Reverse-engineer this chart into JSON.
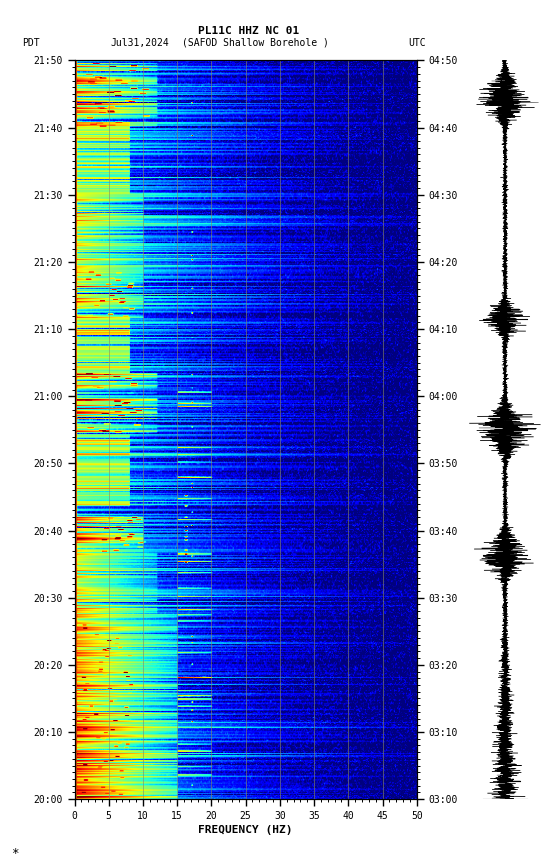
{
  "title_line1": "PL11C HHZ NC 01",
  "title_line2_left": "PDT   Jul31,2024      (SAFOD Shallow Borehole )                    UTC",
  "title_left": "PDT",
  "title_date": "Jul31,2024",
  "title_station": "(SAFOD Shallow Borehole )",
  "title_utc": "UTC",
  "xlabel": "FREQUENCY (HZ)",
  "freq_min": 0,
  "freq_max": 50,
  "freq_ticks": [
    0,
    5,
    10,
    15,
    20,
    25,
    30,
    35,
    40,
    45,
    50
  ],
  "time_left_labels": [
    "20:00",
    "20:10",
    "20:20",
    "20:30",
    "20:40",
    "20:50",
    "21:00",
    "21:10",
    "21:20",
    "21:30",
    "21:40",
    "21:50"
  ],
  "time_right_labels": [
    "03:00",
    "03:10",
    "03:20",
    "03:30",
    "03:40",
    "03:50",
    "04:00",
    "04:10",
    "04:20",
    "04:30",
    "04:40",
    "04:50"
  ],
  "fig_width": 5.52,
  "fig_height": 8.64,
  "colormap": "jet",
  "vline_freqs": [
    5,
    10,
    15,
    20,
    25,
    30,
    35,
    40,
    45
  ],
  "vline_color": "#888866",
  "vline_alpha": 0.6,
  "border_color": "#cc4400",
  "n_time": 720,
  "n_freq": 500
}
